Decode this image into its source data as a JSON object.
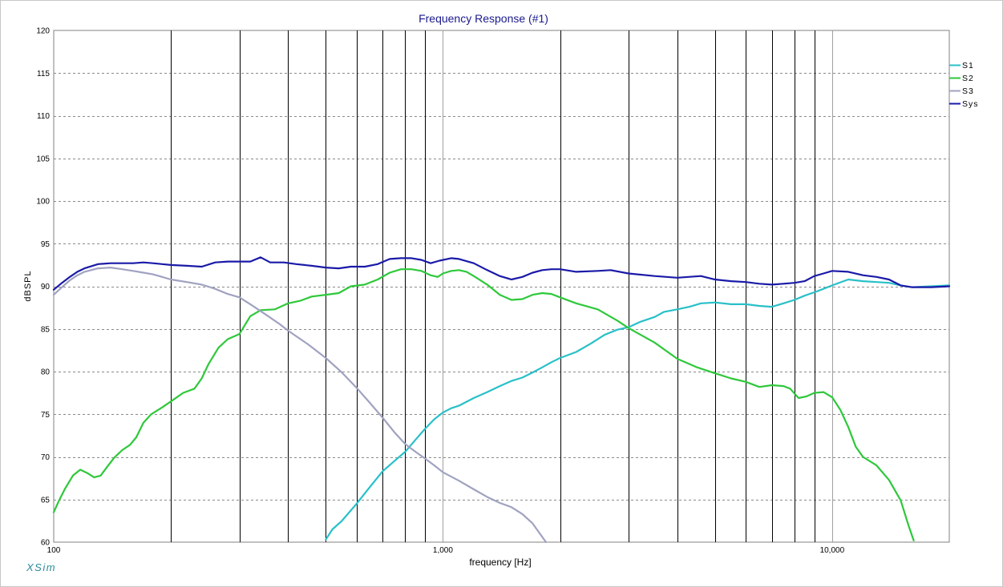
{
  "app": {
    "brand": "XSim"
  },
  "chart_data": {
    "type": "line",
    "title": "Frequency Response (#1)",
    "xlabel": "frequency [Hz]",
    "ylabel": "dBSPL",
    "xscale": "log",
    "xlim": [
      100,
      20000
    ],
    "ylim": [
      60,
      120
    ],
    "x_ticks": [
      {
        "value": 100,
        "label": "100"
      },
      {
        "value": 1000,
        "label": "1,000"
      },
      {
        "value": 10000,
        "label": "10,000"
      }
    ],
    "y_ticks": [
      {
        "value": 120,
        "label": "120"
      },
      {
        "value": 115,
        "label": "115"
      },
      {
        "value": 110,
        "label": "110"
      },
      {
        "value": 105,
        "label": "105"
      },
      {
        "value": 100,
        "label": "100"
      },
      {
        "value": 95,
        "label": "95"
      },
      {
        "value": 90,
        "label": "90"
      },
      {
        "value": 85,
        "label": "85"
      },
      {
        "value": 80,
        "label": "80"
      },
      {
        "value": 75,
        "label": "75"
      },
      {
        "value": 70,
        "label": "70"
      },
      {
        "value": 65,
        "label": "65"
      },
      {
        "value": 60,
        "label": "60"
      }
    ],
    "grid": {
      "major_x": [
        100,
        1000,
        10000
      ],
      "minor_x": "2-9 per decade",
      "y": "dashed every 5 dB"
    },
    "legend_position": "right",
    "colors": {
      "title": "#1a1a8c",
      "brand": "#2a8a9a",
      "major_grid": "#a0a0a0",
      "minor_grid": "#000000",
      "h_grid": "#8a8a8a"
    },
    "series": [
      {
        "name": "S1",
        "color": "#29c0c8",
        "points": [
          [
            500,
            60.3
          ],
          [
            520,
            61.5
          ],
          [
            550,
            62.5
          ],
          [
            600,
            64.5
          ],
          [
            650,
            66.5
          ],
          [
            700,
            68.3
          ],
          [
            750,
            69.5
          ],
          [
            800,
            70.6
          ],
          [
            850,
            72.0
          ],
          [
            900,
            73.3
          ],
          [
            950,
            74.4
          ],
          [
            1000,
            75.2
          ],
          [
            1050,
            75.7
          ],
          [
            1100,
            76.0
          ],
          [
            1200,
            76.9
          ],
          [
            1300,
            77.6
          ],
          [
            1400,
            78.3
          ],
          [
            1500,
            78.9
          ],
          [
            1600,
            79.3
          ],
          [
            1700,
            79.9
          ],
          [
            1800,
            80.5
          ],
          [
            1900,
            81.1
          ],
          [
            2000,
            81.6
          ],
          [
            2200,
            82.3
          ],
          [
            2400,
            83.3
          ],
          [
            2600,
            84.3
          ],
          [
            2800,
            84.9
          ],
          [
            3000,
            85.2
          ],
          [
            3200,
            85.8
          ],
          [
            3500,
            86.4
          ],
          [
            3700,
            87.0
          ],
          [
            4000,
            87.3
          ],
          [
            4300,
            87.6
          ],
          [
            4600,
            88.0
          ],
          [
            5000,
            88.1
          ],
          [
            5500,
            87.9
          ],
          [
            6000,
            87.9
          ],
          [
            6500,
            87.7
          ],
          [
            7000,
            87.6
          ],
          [
            7500,
            88.0
          ],
          [
            8000,
            88.4
          ],
          [
            8500,
            88.9
          ],
          [
            9000,
            89.3
          ],
          [
            9500,
            89.7
          ],
          [
            10000,
            90.1
          ],
          [
            11000,
            90.8
          ],
          [
            12000,
            90.6
          ],
          [
            13000,
            90.5
          ],
          [
            14000,
            90.4
          ],
          [
            15000,
            90.1
          ],
          [
            16000,
            89.9
          ],
          [
            18000,
            90.0
          ],
          [
            20000,
            90.1
          ]
        ]
      },
      {
        "name": "S2",
        "color": "#2ec83a",
        "points": [
          [
            100,
            63.5
          ],
          [
            103,
            64.8
          ],
          [
            107,
            66.3
          ],
          [
            112,
            67.8
          ],
          [
            117,
            68.5
          ],
          [
            122,
            68.1
          ],
          [
            127,
            67.6
          ],
          [
            132,
            67.8
          ],
          [
            137,
            68.8
          ],
          [
            143,
            69.9
          ],
          [
            150,
            70.8
          ],
          [
            157,
            71.4
          ],
          [
            163,
            72.3
          ],
          [
            170,
            74.0
          ],
          [
            178,
            75.0
          ],
          [
            190,
            75.8
          ],
          [
            200,
            76.5
          ],
          [
            215,
            77.5
          ],
          [
            230,
            78.0
          ],
          [
            240,
            79.2
          ],
          [
            250,
            80.9
          ],
          [
            265,
            82.8
          ],
          [
            280,
            83.8
          ],
          [
            300,
            84.4
          ],
          [
            320,
            86.5
          ],
          [
            340,
            87.2
          ],
          [
            370,
            87.3
          ],
          [
            400,
            88.0
          ],
          [
            430,
            88.3
          ],
          [
            460,
            88.8
          ],
          [
            500,
            89.0
          ],
          [
            540,
            89.2
          ],
          [
            580,
            90.0
          ],
          [
            630,
            90.2
          ],
          [
            680,
            90.8
          ],
          [
            730,
            91.6
          ],
          [
            780,
            92.0
          ],
          [
            830,
            92.0
          ],
          [
            880,
            91.8
          ],
          [
            930,
            91.3
          ],
          [
            970,
            91.1
          ],
          [
            1000,
            91.5
          ],
          [
            1050,
            91.8
          ],
          [
            1100,
            91.9
          ],
          [
            1150,
            91.7
          ],
          [
            1200,
            91.2
          ],
          [
            1300,
            90.2
          ],
          [
            1400,
            89.0
          ],
          [
            1500,
            88.4
          ],
          [
            1600,
            88.5
          ],
          [
            1700,
            89.0
          ],
          [
            1800,
            89.2
          ],
          [
            1900,
            89.1
          ],
          [
            2000,
            88.7
          ],
          [
            2200,
            88.0
          ],
          [
            2500,
            87.3
          ],
          [
            2800,
            86.0
          ],
          [
            3000,
            85.1
          ],
          [
            3500,
            83.4
          ],
          [
            4000,
            81.5
          ],
          [
            4500,
            80.5
          ],
          [
            5000,
            79.8
          ],
          [
            5500,
            79.2
          ],
          [
            6000,
            78.8
          ],
          [
            6500,
            78.2
          ],
          [
            7000,
            78.4
          ],
          [
            7500,
            78.3
          ],
          [
            7800,
            78.0
          ],
          [
            8200,
            76.9
          ],
          [
            8600,
            77.1
          ],
          [
            9000,
            77.5
          ],
          [
            9500,
            77.6
          ],
          [
            10000,
            77.0
          ],
          [
            10500,
            75.5
          ],
          [
            11000,
            73.5
          ],
          [
            11500,
            71.2
          ],
          [
            12000,
            70.0
          ],
          [
            13000,
            69.0
          ],
          [
            14000,
            67.3
          ],
          [
            15000,
            64.9
          ],
          [
            15700,
            62.0
          ],
          [
            16200,
            60.2
          ]
        ]
      },
      {
        "name": "S3",
        "color": "#a0a2c0",
        "points": [
          [
            100,
            89.0
          ],
          [
            105,
            89.9
          ],
          [
            110,
            90.7
          ],
          [
            115,
            91.3
          ],
          [
            120,
            91.7
          ],
          [
            130,
            92.1
          ],
          [
            140,
            92.2
          ],
          [
            150,
            92.0
          ],
          [
            160,
            91.8
          ],
          [
            170,
            91.6
          ],
          [
            180,
            91.4
          ],
          [
            190,
            91.1
          ],
          [
            200,
            90.8
          ],
          [
            220,
            90.5
          ],
          [
            240,
            90.2
          ],
          [
            260,
            89.7
          ],
          [
            280,
            89.1
          ],
          [
            300,
            88.7
          ],
          [
            320,
            87.9
          ],
          [
            350,
            86.7
          ],
          [
            380,
            85.6
          ],
          [
            400,
            84.8
          ],
          [
            450,
            83.2
          ],
          [
            500,
            81.6
          ],
          [
            550,
            79.9
          ],
          [
            600,
            78.1
          ],
          [
            650,
            76.3
          ],
          [
            700,
            74.6
          ],
          [
            750,
            72.9
          ],
          [
            800,
            71.5
          ],
          [
            850,
            70.6
          ],
          [
            900,
            69.8
          ],
          [
            950,
            69.0
          ],
          [
            1000,
            68.2
          ],
          [
            1100,
            67.2
          ],
          [
            1200,
            66.2
          ],
          [
            1300,
            65.3
          ],
          [
            1400,
            64.6
          ],
          [
            1500,
            64.1
          ],
          [
            1600,
            63.3
          ],
          [
            1700,
            62.2
          ],
          [
            1800,
            60.6
          ],
          [
            1840,
            60.0
          ]
        ]
      },
      {
        "name": "Sys",
        "color": "#1a1aa8",
        "points": [
          [
            100,
            89.6
          ],
          [
            105,
            90.4
          ],
          [
            110,
            91.1
          ],
          [
            115,
            91.7
          ],
          [
            120,
            92.1
          ],
          [
            130,
            92.6
          ],
          [
            140,
            92.7
          ],
          [
            150,
            92.7
          ],
          [
            160,
            92.7
          ],
          [
            170,
            92.8
          ],
          [
            180,
            92.7
          ],
          [
            190,
            92.6
          ],
          [
            200,
            92.5
          ],
          [
            220,
            92.4
          ],
          [
            240,
            92.3
          ],
          [
            260,
            92.8
          ],
          [
            280,
            92.9
          ],
          [
            300,
            92.9
          ],
          [
            320,
            92.9
          ],
          [
            340,
            93.4
          ],
          [
            360,
            92.8
          ],
          [
            390,
            92.8
          ],
          [
            420,
            92.6
          ],
          [
            460,
            92.4
          ],
          [
            500,
            92.2
          ],
          [
            540,
            92.1
          ],
          [
            580,
            92.3
          ],
          [
            630,
            92.3
          ],
          [
            680,
            92.6
          ],
          [
            730,
            93.2
          ],
          [
            780,
            93.3
          ],
          [
            830,
            93.3
          ],
          [
            880,
            93.1
          ],
          [
            930,
            92.7
          ],
          [
            980,
            93.0
          ],
          [
            1050,
            93.3
          ],
          [
            1100,
            93.2
          ],
          [
            1200,
            92.7
          ],
          [
            1300,
            91.9
          ],
          [
            1400,
            91.2
          ],
          [
            1500,
            90.8
          ],
          [
            1600,
            91.1
          ],
          [
            1700,
            91.6
          ],
          [
            1800,
            91.9
          ],
          [
            1900,
            92.0
          ],
          [
            2000,
            92.0
          ],
          [
            2200,
            91.7
          ],
          [
            2500,
            91.8
          ],
          [
            2700,
            91.9
          ],
          [
            3000,
            91.5
          ],
          [
            3500,
            91.2
          ],
          [
            4000,
            91.0
          ],
          [
            4600,
            91.2
          ],
          [
            5000,
            90.8
          ],
          [
            5500,
            90.6
          ],
          [
            6000,
            90.5
          ],
          [
            6500,
            90.3
          ],
          [
            7000,
            90.2
          ],
          [
            7500,
            90.3
          ],
          [
            8000,
            90.4
          ],
          [
            8500,
            90.6
          ],
          [
            9000,
            91.2
          ],
          [
            9500,
            91.5
          ],
          [
            10000,
            91.8
          ],
          [
            11000,
            91.7
          ],
          [
            12000,
            91.3
          ],
          [
            13000,
            91.1
          ],
          [
            14000,
            90.8
          ],
          [
            15000,
            90.1
          ],
          [
            16000,
            89.9
          ],
          [
            18000,
            89.9
          ],
          [
            20000,
            90.0
          ]
        ]
      }
    ]
  }
}
